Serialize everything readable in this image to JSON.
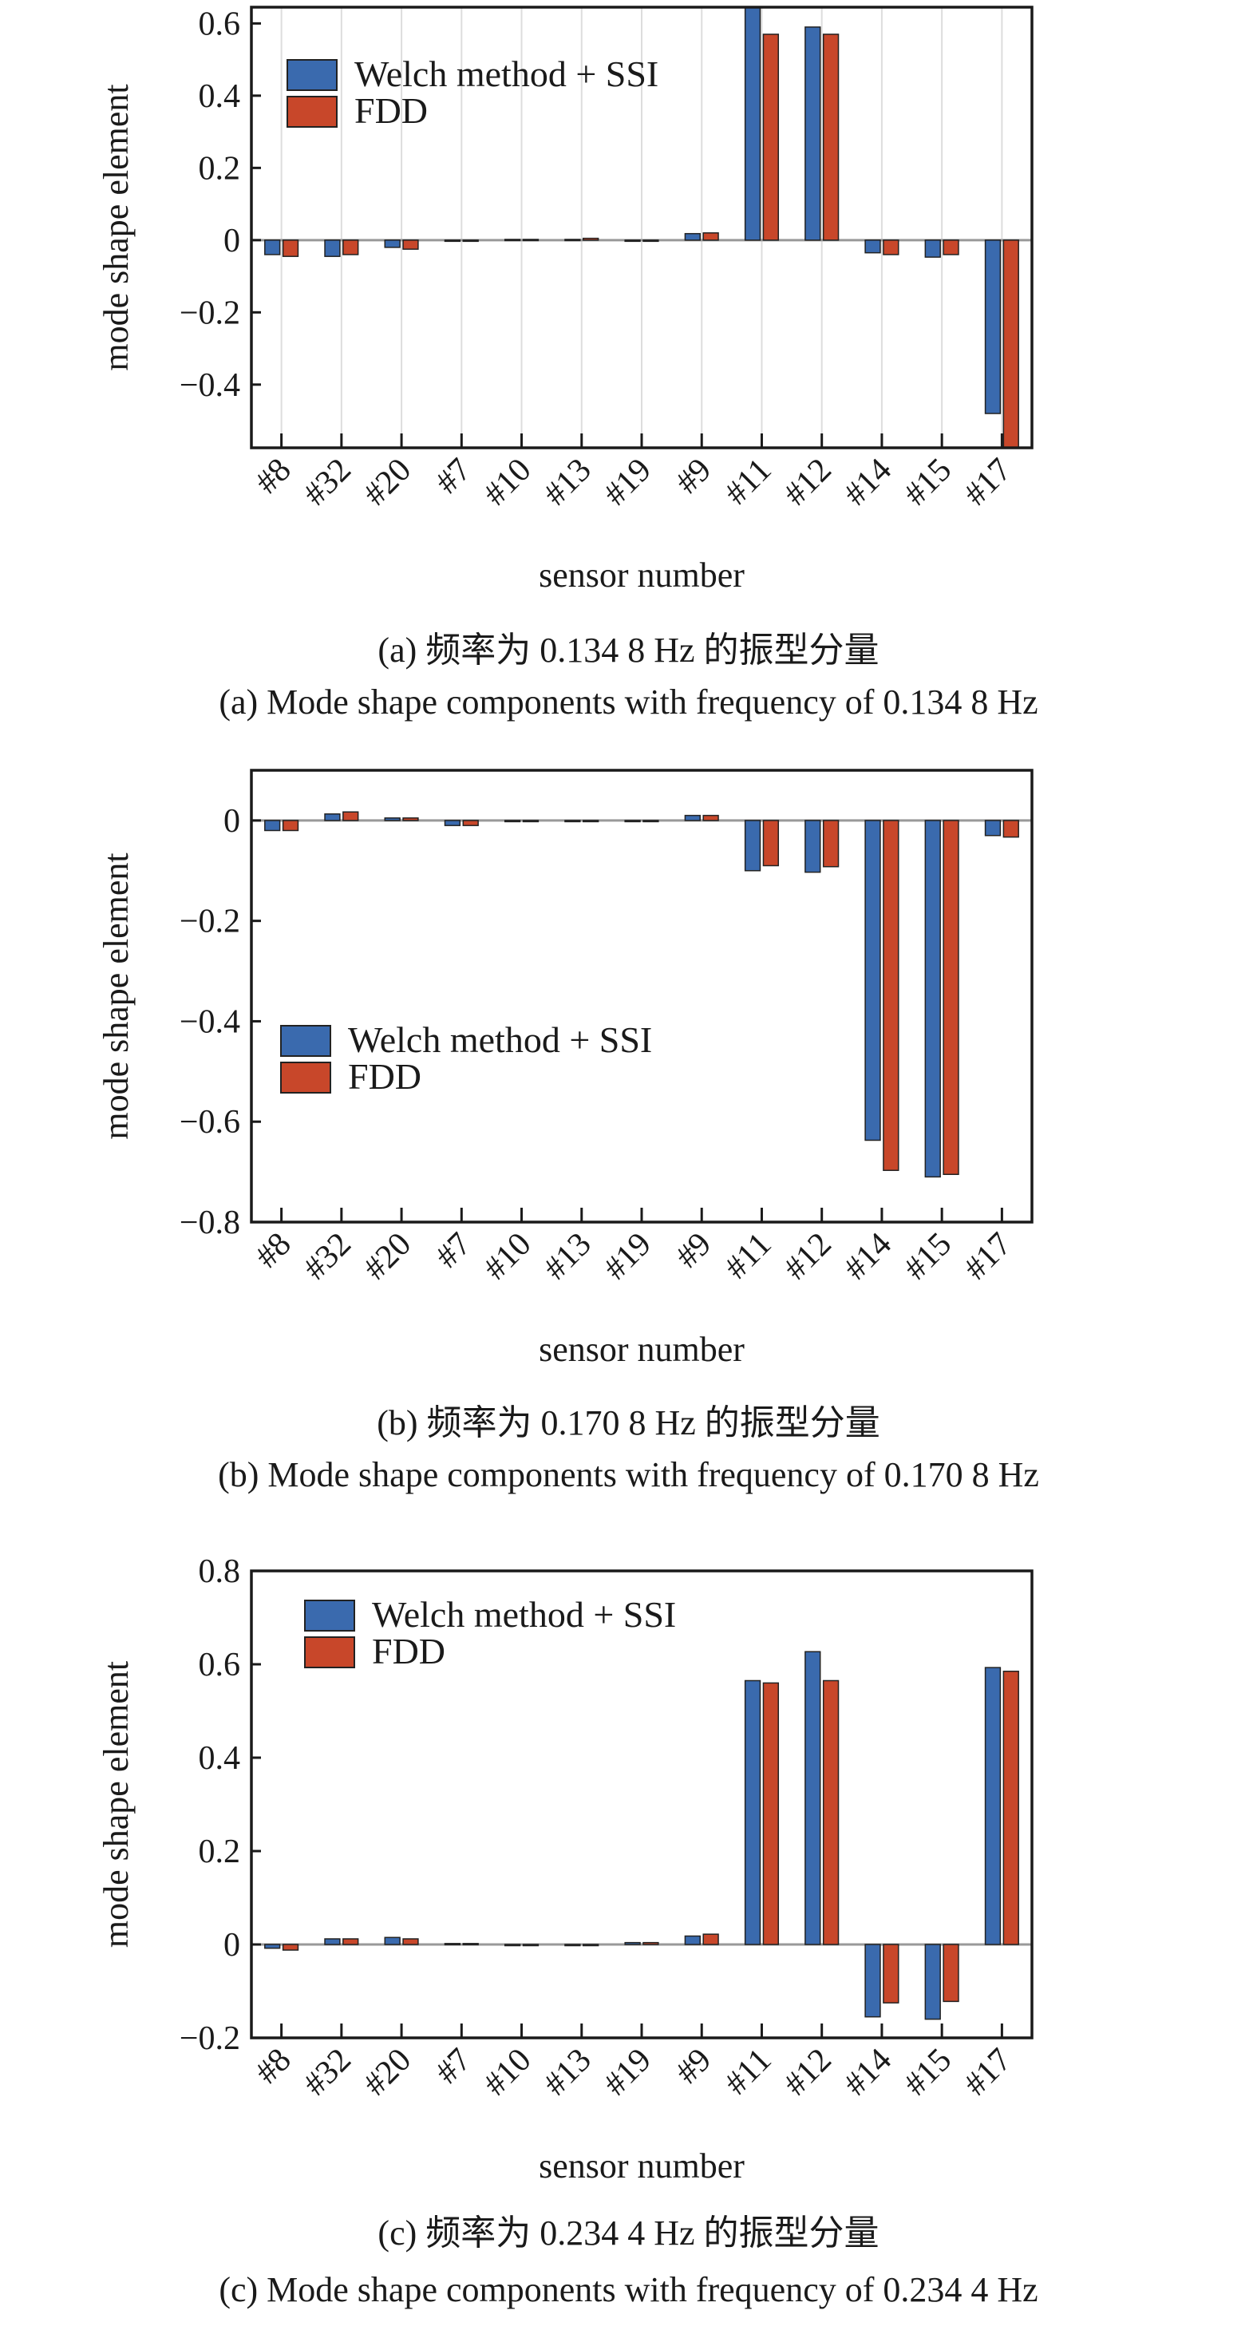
{
  "colors": {
    "welch_ssi": "#3a6aae",
    "fdd": "#c8472a",
    "axis": "#1a1a1a",
    "grid": "#dddddd",
    "zero_line": "#999999"
  },
  "chart_data": [
    {
      "type": "bar",
      "xlabel": "sensor number",
      "ylabel": "mode shape element",
      "categories": [
        "#8",
        "#32",
        "#20",
        "#7",
        "#10",
        "#13",
        "#19",
        "#9",
        "#11",
        "#12",
        "#14",
        "#15",
        "#17"
      ],
      "ylim": [
        -0.575,
        0.645
      ],
      "yticks": [
        -0.4,
        -0.2,
        0,
        0.2,
        0.4,
        0.6
      ],
      "ytick_labels": [
        "−0.4",
        "−0.2",
        "0",
        "0.2",
        "0.4",
        "0.6"
      ],
      "grid": "vertical",
      "legend": "top-left",
      "series": [
        {
          "name": "Welch method + SSI",
          "values": [
            -0.04,
            -0.045,
            -0.02,
            0,
            0.002,
            0.002,
            0,
            0.018,
            0.66,
            0.59,
            -0.035,
            -0.047,
            -0.48
          ]
        },
        {
          "name": "FDD",
          "values": [
            -0.045,
            -0.04,
            -0.025,
            0,
            0.002,
            0.005,
            0,
            0.02,
            0.57,
            0.57,
            -0.04,
            -0.04,
            -0.58
          ]
        }
      ],
      "caption_cn": "(a) 频率为 0.134 8 Hz 的振型分量",
      "caption_en": "(a) Mode shape components with frequency of 0.134 8 Hz"
    },
    {
      "type": "bar",
      "xlabel": "sensor number",
      "ylabel": "mode shape element",
      "categories": [
        "#8",
        "#32",
        "#20",
        "#7",
        "#10",
        "#13",
        "#19",
        "#9",
        "#11",
        "#12",
        "#14",
        "#15",
        "#17"
      ],
      "ylim": [
        -0.8,
        0.1
      ],
      "yticks": [
        -0.8,
        -0.6,
        -0.4,
        -0.2,
        0
      ],
      "ytick_labels": [
        "−0.8",
        "−0.6",
        "−0.4",
        "−0.2",
        "0"
      ],
      "grid": "none",
      "legend": "center-left",
      "series": [
        {
          "name": "Welch method + SSI",
          "values": [
            -0.02,
            0.013,
            0.005,
            -0.01,
            -0.002,
            0,
            -0.002,
            0.01,
            -0.1,
            -0.103,
            -0.637,
            -0.71,
            -0.03
          ]
        },
        {
          "name": "FDD",
          "values": [
            -0.02,
            0.017,
            0.005,
            -0.01,
            -0.002,
            0,
            -0.002,
            0.01,
            -0.09,
            -0.092,
            -0.697,
            -0.705,
            -0.033
          ]
        }
      ],
      "caption_cn": "(b) 频率为 0.170 8 Hz 的振型分量",
      "caption_en": "(b) Mode shape components with frequency of 0.170 8 Hz"
    },
    {
      "type": "bar",
      "xlabel": "sensor number",
      "ylabel": "mode shape element",
      "categories": [
        "#8",
        "#32",
        "#20",
        "#7",
        "#10",
        "#13",
        "#19",
        "#9",
        "#11",
        "#12",
        "#14",
        "#15",
        "#17"
      ],
      "ylim": [
        -0.2,
        0.8
      ],
      "yticks": [
        -0.2,
        0,
        0.2,
        0.4,
        0.6,
        0.8
      ],
      "ytick_labels": [
        "−0.2",
        "0",
        "0.2",
        "0.4",
        "0.6",
        "0.8"
      ],
      "grid": "none",
      "legend": "top-left",
      "series": [
        {
          "name": "Welch method + SSI",
          "values": [
            -0.008,
            0.012,
            0.015,
            0.002,
            0,
            0,
            0.004,
            0.018,
            0.565,
            0.627,
            -0.155,
            -0.16,
            0.593
          ]
        },
        {
          "name": "FDD",
          "values": [
            -0.012,
            0.012,
            0.012,
            0.002,
            0,
            0,
            0.004,
            0.022,
            0.56,
            0.565,
            -0.125,
            -0.122,
            0.585
          ]
        }
      ],
      "caption_cn": "(c) 频率为 0.234 4 Hz 的振型分量",
      "caption_en": "(c) Mode shape components with frequency of 0.234 4 Hz"
    }
  ]
}
